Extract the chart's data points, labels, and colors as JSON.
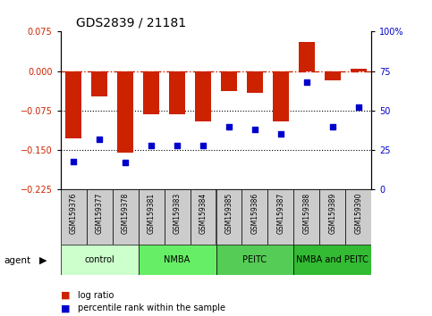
{
  "title": "GDS2839 / 21181",
  "samples": [
    "GSM159376",
    "GSM159377",
    "GSM159378",
    "GSM159381",
    "GSM159383",
    "GSM159384",
    "GSM159385",
    "GSM159386",
    "GSM159387",
    "GSM159388",
    "GSM159389",
    "GSM159390"
  ],
  "log_ratio": [
    -0.128,
    -0.048,
    -0.155,
    -0.082,
    -0.082,
    -0.095,
    -0.038,
    -0.042,
    -0.095,
    0.055,
    -0.018,
    0.005
  ],
  "percentile_rank": [
    18,
    32,
    17,
    28,
    28,
    28,
    40,
    38,
    35,
    68,
    40,
    52
  ],
  "bar_color": "#cc2200",
  "dot_color": "#0000cc",
  "ylim_left": [
    -0.225,
    0.075
  ],
  "ylim_right": [
    0,
    100
  ],
  "yticks_left": [
    0.075,
    0,
    -0.075,
    -0.15,
    -0.225
  ],
  "yticks_right": [
    100,
    75,
    50,
    25,
    0
  ],
  "groups": [
    {
      "label": "control",
      "start": 0,
      "end": 3,
      "color": "#ccffcc"
    },
    {
      "label": "NMBA",
      "start": 3,
      "end": 6,
      "color": "#66ee66"
    },
    {
      "label": "PEITC",
      "start": 6,
      "end": 9,
      "color": "#55cc55"
    },
    {
      "label": "NMBA and PEITC",
      "start": 9,
      "end": 12,
      "color": "#33bb33"
    }
  ],
  "hline_zero_color": "#cc2200",
  "hline_dotted_color": "#000000",
  "bar_width": 0.6,
  "fig_width": 4.83,
  "fig_height": 3.54,
  "dpi": 100
}
